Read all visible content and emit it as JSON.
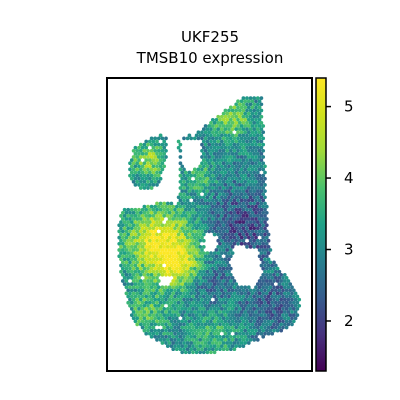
{
  "chart_data": {
    "type": "heatmap",
    "subtype": "spatial-spot-map",
    "title_lines": [
      "UKF255",
      "TMSB10 expression"
    ],
    "colormap": "viridis",
    "colorbar": {
      "vmin": 1.3,
      "vmax": 5.4,
      "ticks": [
        2,
        3,
        4,
        5
      ],
      "tick_labels": [
        "2",
        "3",
        "4",
        "5"
      ]
    },
    "value_range_observed": [
      1.3,
      5.4
    ],
    "axes_visible": false,
    "grid": false
  }
}
